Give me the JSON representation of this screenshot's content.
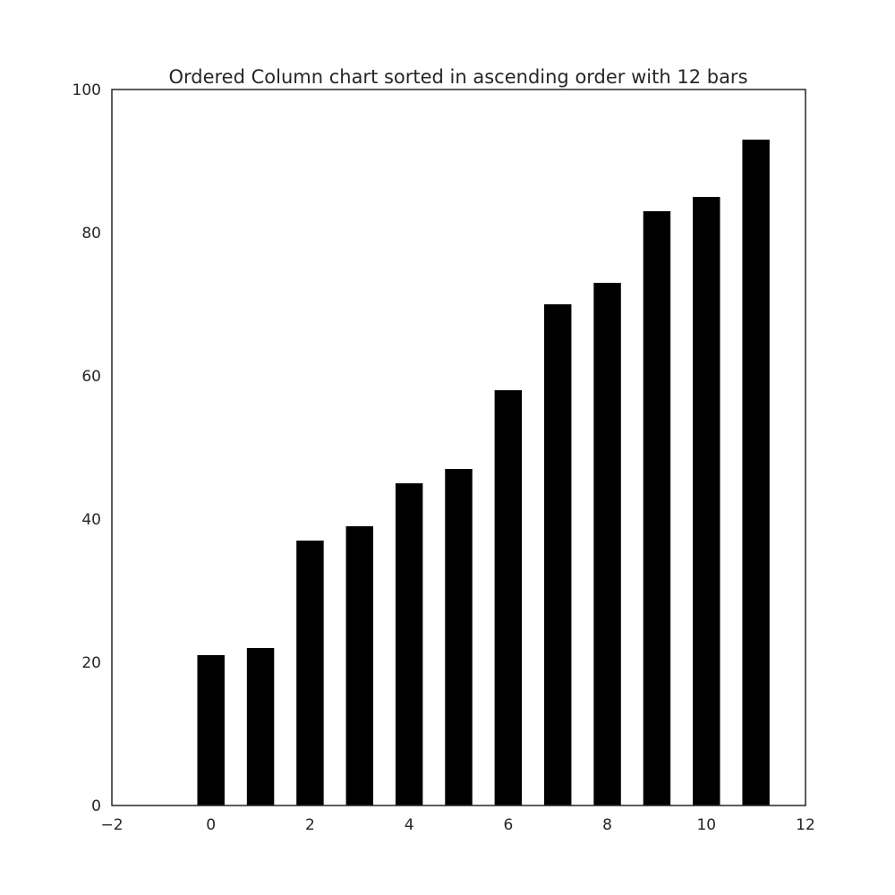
{
  "chart_data": {
    "type": "bar",
    "title": "Ordered Column chart sorted in ascending order with 12 bars",
    "xlabel": "",
    "ylabel": "",
    "x": [
      0,
      1,
      2,
      3,
      4,
      5,
      6,
      7,
      8,
      9,
      10,
      11
    ],
    "values": [
      21,
      22,
      37,
      39,
      45,
      47,
      58,
      70,
      73,
      83,
      85,
      93
    ],
    "bar_width": 0.55,
    "xlim": [
      -2,
      12
    ],
    "ylim": [
      0,
      100
    ],
    "xticks": [
      -2,
      0,
      2,
      4,
      6,
      8,
      10,
      12
    ],
    "xtick_labels": [
      "−2",
      "0",
      "2",
      "4",
      "6",
      "8",
      "10",
      "12"
    ],
    "yticks": [
      0,
      20,
      40,
      60,
      80,
      100
    ],
    "ytick_labels": [
      "0",
      "20",
      "40",
      "60",
      "80",
      "100"
    ],
    "grid": false,
    "legend": "none",
    "colors": {
      "bar": "#000000",
      "axes_edge": "#262626",
      "text": "#262626",
      "background": "#ffffff"
    }
  }
}
